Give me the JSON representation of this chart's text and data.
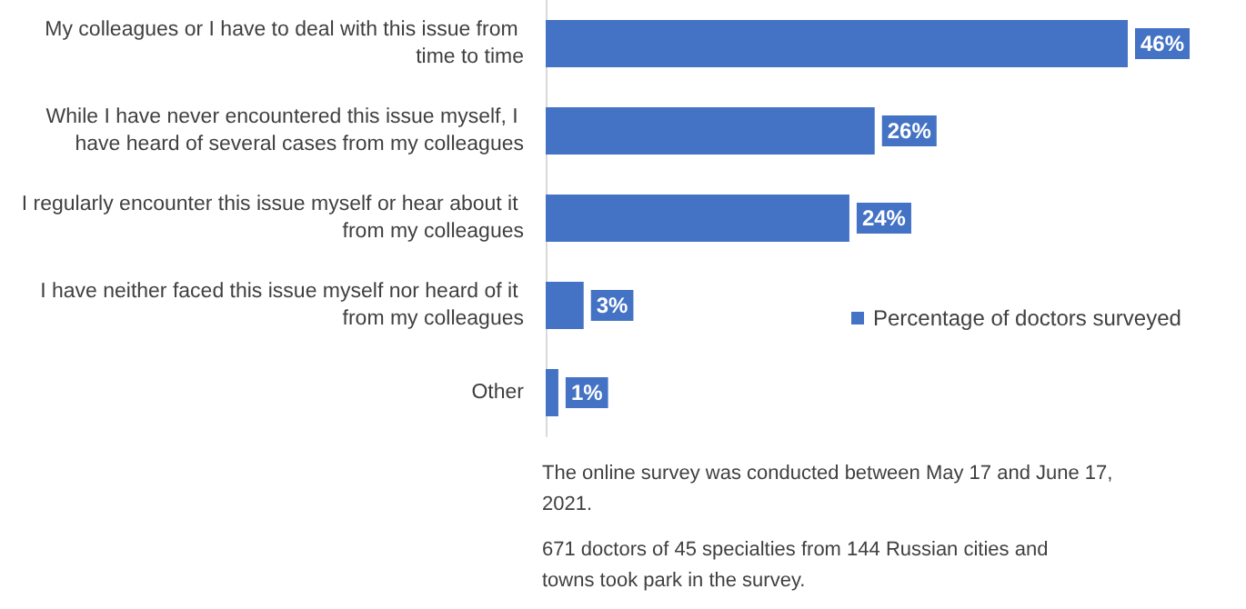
{
  "chart_data": {
    "type": "bar",
    "orientation": "horizontal",
    "categories": [
      "My colleagues or I have to deal with this issue from time to time",
      "While I have never encountered this issue myself, I have heard of several cases from my colleagues",
      "I regularly encounter this issue myself or hear about it from my colleagues",
      "I have neither faced this issue myself nor heard of it from my colleagues",
      "Other"
    ],
    "series": [
      {
        "name": "Percentage of doctors surveyed",
        "color": "#4472c4",
        "values": [
          46,
          26,
          24,
          3,
          1
        ],
        "value_labels": [
          "46%",
          "26%",
          "24%",
          "3%",
          "1%"
        ]
      }
    ],
    "legend": "right",
    "tick_labels": "y",
    "annotations": [
      "The online survey was conducted between May 17 and June 17, 2021.",
      "671 doctors of 45 specialties from 144 Russian cities and towns took park in the survey."
    ]
  }
}
